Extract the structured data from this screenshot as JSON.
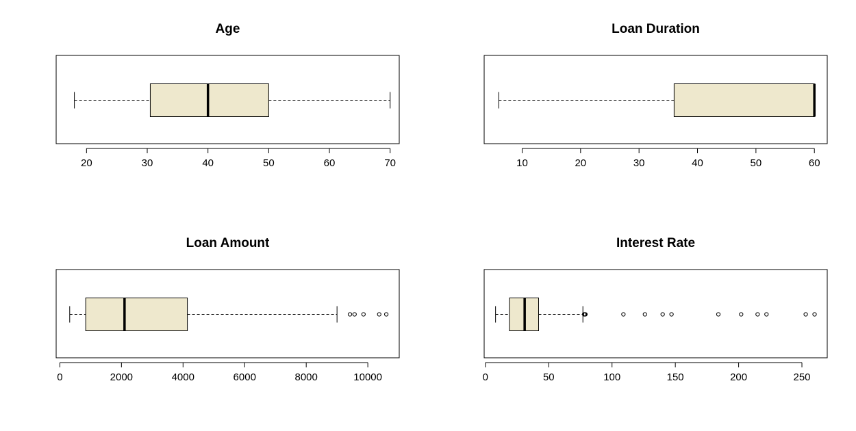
{
  "chart_data": [
    {
      "type": "boxplot",
      "orientation": "horizontal",
      "title": "Age",
      "xlim": [
        15,
        71.5
      ],
      "ticks": [
        20,
        30,
        40,
        50,
        60,
        70
      ],
      "tick_labels": [
        "20",
        "30",
        "40",
        "50",
        "60",
        "70"
      ],
      "box_color": "#EEE8CD",
      "stats": {
        "whisker_low": 18,
        "q1": 30.5,
        "median": 40,
        "q3": 50,
        "whisker_high": 70
      },
      "outliers": []
    },
    {
      "type": "boxplot",
      "orientation": "horizontal",
      "title": "Loan Duration",
      "xlim": [
        3.5,
        62.2
      ],
      "ticks": [
        10,
        20,
        30,
        40,
        50,
        60
      ],
      "tick_labels": [
        "10",
        "20",
        "30",
        "40",
        "50",
        "60"
      ],
      "box_color": "#EEE8CD",
      "stats": {
        "whisker_low": 6,
        "q1": 36,
        "median": 60,
        "q3": 60,
        "whisker_high": 60
      },
      "outliers": []
    },
    {
      "type": "boxplot",
      "orientation": "horizontal",
      "title": "Loan Amount",
      "xlim": [
        -120,
        11020
      ],
      "ticks": [
        0,
        2000,
        4000,
        6000,
        8000,
        10000
      ],
      "tick_labels": [
        "0",
        "2000",
        "4000",
        "6000",
        "8000",
        "10000"
      ],
      "box_color": "#EEE8CD",
      "stats": {
        "whisker_low": 320,
        "q1": 840,
        "median": 2100,
        "q3": 4140,
        "whisker_high": 9000
      },
      "outliers": [
        9420,
        9570,
        9860,
        10370,
        10600
      ]
    },
    {
      "type": "boxplot",
      "orientation": "horizontal",
      "title": "Interest Rate",
      "xlim": [
        -1,
        270
      ],
      "ticks": [
        0,
        50,
        100,
        150,
        200,
        250
      ],
      "tick_labels": [
        "0",
        "50",
        "100",
        "150",
        "200",
        "250"
      ],
      "box_color": "#EEE8CD",
      "stats": {
        "whisker_low": 8,
        "q1": 19,
        "median": 31,
        "q3": 42,
        "whisker_high": 77
      },
      "outliers": [
        78,
        78.5,
        79,
        109,
        126,
        140,
        147,
        184,
        202,
        215,
        222,
        253,
        260
      ]
    }
  ]
}
